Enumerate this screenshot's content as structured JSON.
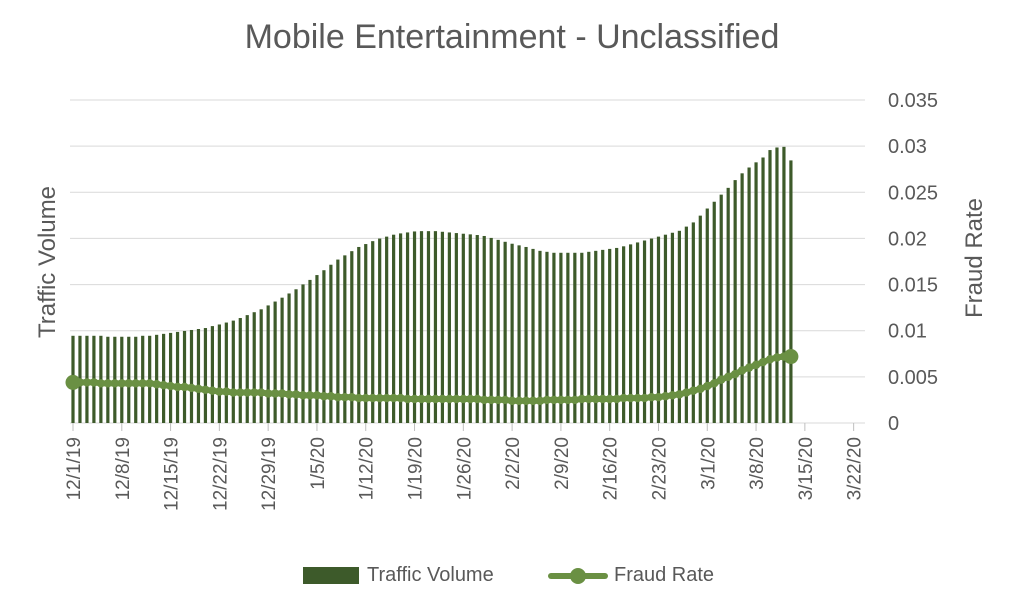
{
  "chart_data": {
    "type": "bar+line",
    "title": "Mobile Entertainment - Unclassified",
    "ylabel_left": "Traffic Volume",
    "ylabel_right": "Fraud Rate",
    "y_right_ticks": [
      "0",
      "0.005",
      "0.01",
      "0.015",
      "0.02",
      "0.025",
      "0.03",
      "0.035"
    ],
    "y_right_lim": [
      0,
      0.035
    ],
    "x_tick_labels": [
      "12/1/19",
      "12/8/19",
      "12/15/19",
      "12/22/19",
      "12/29/19",
      "1/5/20",
      "1/12/20",
      "1/19/20",
      "1/26/20",
      "2/2/20",
      "2/9/20",
      "2/16/20",
      "2/23/20",
      "3/1/20",
      "3/8/20",
      "3/15/20",
      "3/22/20"
    ],
    "x_start": "12/1/19",
    "legend_position": "bottom",
    "grid": true,
    "series": [
      {
        "name": "Traffic Volume",
        "kind": "bar",
        "color": "#3d5a2a",
        "values_relative": [
          0.27,
          0.27,
          0.27,
          0.27,
          0.27,
          0.267,
          0.267,
          0.267,
          0.267,
          0.267,
          0.27,
          0.27,
          0.273,
          0.276,
          0.279,
          0.282,
          0.285,
          0.288,
          0.291,
          0.294,
          0.3,
          0.305,
          0.311,
          0.317,
          0.325,
          0.334,
          0.343,
          0.352,
          0.364,
          0.376,
          0.388,
          0.401,
          0.414,
          0.429,
          0.443,
          0.458,
          0.473,
          0.49,
          0.506,
          0.519,
          0.532,
          0.545,
          0.554,
          0.563,
          0.571,
          0.577,
          0.583,
          0.587,
          0.59,
          0.593,
          0.594,
          0.594,
          0.594,
          0.592,
          0.59,
          0.588,
          0.586,
          0.584,
          0.582,
          0.579,
          0.573,
          0.567,
          0.561,
          0.555,
          0.55,
          0.545,
          0.539,
          0.533,
          0.53,
          0.527,
          0.527,
          0.527,
          0.527,
          0.527,
          0.53,
          0.533,
          0.536,
          0.539,
          0.542,
          0.547,
          0.553,
          0.559,
          0.565,
          0.571,
          0.577,
          0.583,
          0.589,
          0.595,
          0.608,
          0.621,
          0.642,
          0.664,
          0.685,
          0.707,
          0.728,
          0.752,
          0.773,
          0.791,
          0.807,
          0.822,
          0.845,
          0.853,
          0.855,
          0.813
        ]
      },
      {
        "name": "Fraud Rate",
        "kind": "line",
        "color": "#6a9043",
        "values": [
          0.0044,
          0.0044,
          0.0044,
          0.0044,
          0.0043,
          0.0043,
          0.0043,
          0.0043,
          0.0043,
          0.0043,
          0.0043,
          0.0043,
          0.0042,
          0.0041,
          0.004,
          0.0039,
          0.0039,
          0.0038,
          0.0037,
          0.0036,
          0.0035,
          0.0034,
          0.0034,
          0.0033,
          0.0033,
          0.0033,
          0.0033,
          0.0033,
          0.0032,
          0.0032,
          0.0032,
          0.0031,
          0.0031,
          0.003,
          0.003,
          0.003,
          0.0029,
          0.0029,
          0.0028,
          0.0028,
          0.0028,
          0.0027,
          0.0027,
          0.0027,
          0.0027,
          0.0027,
          0.0027,
          0.0027,
          0.0026,
          0.0026,
          0.0026,
          0.0026,
          0.0026,
          0.0026,
          0.0026,
          0.0026,
          0.0026,
          0.0026,
          0.0026,
          0.0025,
          0.0025,
          0.0025,
          0.0025,
          0.0024,
          0.0024,
          0.0024,
          0.0024,
          0.0024,
          0.0025,
          0.0025,
          0.0025,
          0.0025,
          0.0025,
          0.0026,
          0.0026,
          0.0026,
          0.0026,
          0.0026,
          0.0026,
          0.0027,
          0.0027,
          0.0027,
          0.0027,
          0.0028,
          0.0028,
          0.0029,
          0.003,
          0.0031,
          0.0033,
          0.0035,
          0.0037,
          0.004,
          0.0043,
          0.0047,
          0.005,
          0.0053,
          0.0057,
          0.006,
          0.0063,
          0.0066,
          0.0069,
          0.0071,
          0.0072,
          0.0072
        ]
      }
    ]
  }
}
